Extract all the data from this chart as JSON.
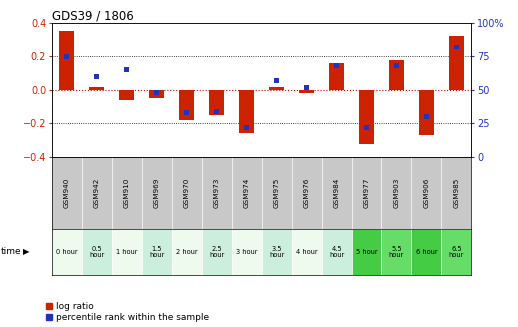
{
  "title": "GDS39 / 1806",
  "samples": [
    "GSM940",
    "GSM942",
    "GSM910",
    "GSM969",
    "GSM970",
    "GSM973",
    "GSM974",
    "GSM975",
    "GSM976",
    "GSM984",
    "GSM977",
    "GSM903",
    "GSM906",
    "GSM985"
  ],
  "time_labels": [
    "0 hour",
    "0.5\nhour",
    "1 hour",
    "1.5\nhour",
    "2 hour",
    "2.5\nhour",
    "3 hour",
    "3.5\nhour",
    "4 hour",
    "4.5\nhour",
    "5 hour",
    "5.5\nhour",
    "6 hour",
    "6.5\nhour"
  ],
  "log_ratio": [
    0.35,
    0.02,
    -0.06,
    -0.05,
    -0.18,
    -0.15,
    -0.26,
    0.02,
    -0.02,
    0.16,
    -0.32,
    0.18,
    -0.27,
    0.32
  ],
  "percentile": [
    75,
    60,
    65,
    48,
    33,
    34,
    22,
    57,
    52,
    68,
    22,
    68,
    30,
    82
  ],
  "ylim_left": [
    -0.4,
    0.4
  ],
  "ylim_right": [
    0,
    100
  ],
  "yticks_left": [
    -0.4,
    -0.2,
    0.0,
    0.2,
    0.4
  ],
  "yticks_right": [
    0,
    25,
    50,
    75,
    100
  ],
  "bar_color": "#cc2200",
  "blue_color": "#2233bb",
  "red_dot_color": "#dd0000",
  "sample_bg": "#c8c8c8",
  "time_colors": [
    "#edfaed",
    "#cceedd",
    "#edfaed",
    "#cceedd",
    "#edfaed",
    "#cceedd",
    "#edfaed",
    "#cceedd",
    "#edfaed",
    "#cceedd",
    "#44cc44",
    "#66dd66",
    "#44cc44",
    "#66dd66"
  ]
}
